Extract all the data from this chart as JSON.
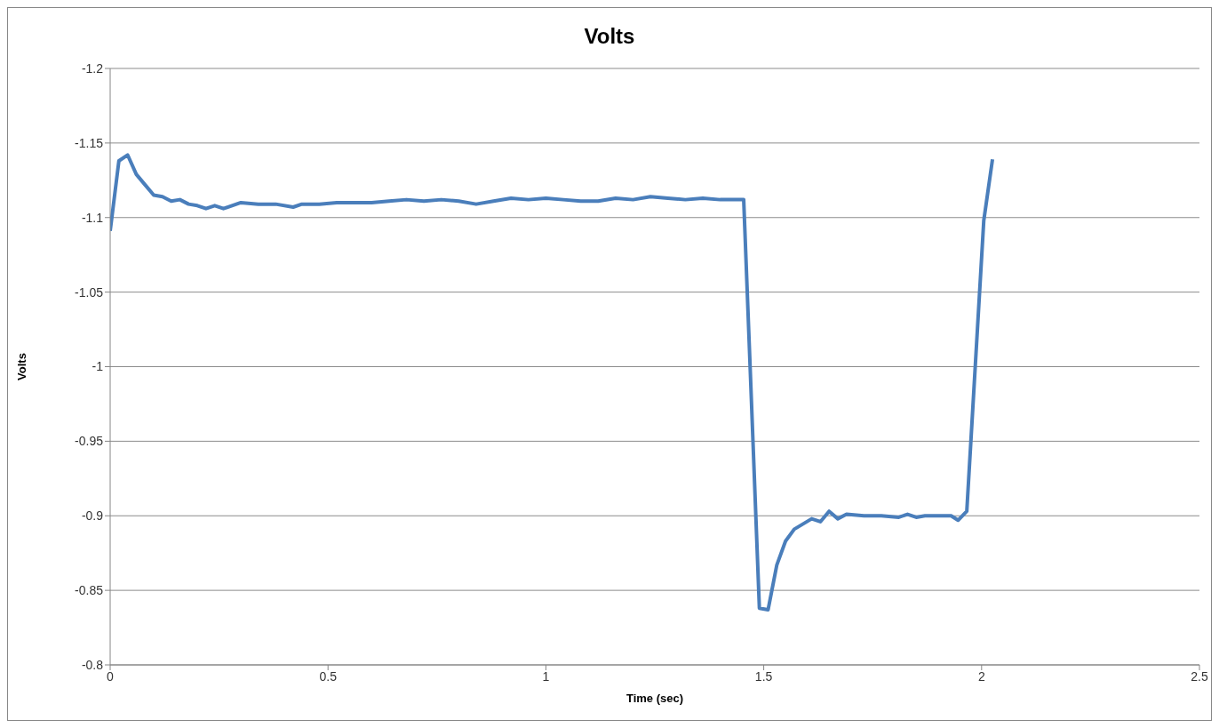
{
  "chart_data": {
    "type": "line",
    "title": "Volts",
    "xlabel": "Time (sec)",
    "ylabel": "Volts",
    "x": [
      0,
      0.02,
      0.04,
      0.06,
      0.08,
      0.1,
      0.12,
      0.14,
      0.16,
      0.18,
      0.2,
      0.22,
      0.24,
      0.26,
      0.3,
      0.34,
      0.38,
      0.42,
      0.44,
      0.48,
      0.52,
      0.56,
      0.6,
      0.64,
      0.68,
      0.72,
      0.76,
      0.8,
      0.84,
      0.88,
      0.92,
      0.96,
      1,
      1.04,
      1.08,
      1.12,
      1.16,
      1.2,
      1.24,
      1.28,
      1.32,
      1.36,
      1.4,
      1.44,
      1.454,
      1.49,
      1.51,
      1.53,
      1.55,
      1.57,
      1.61,
      1.63,
      1.65,
      1.67,
      1.69,
      1.73,
      1.77,
      1.81,
      1.83,
      1.85,
      1.87,
      1.9,
      1.93,
      1.946,
      1.966,
      2.005,
      2.025
    ],
    "series": [
      {
        "color": "#4a7ebb",
        "values": [
          -1.091,
          -1.138,
          -1.142,
          -1.129,
          -1.122,
          -1.115,
          -1.114,
          -1.111,
          -1.112,
          -1.109,
          -1.108,
          -1.106,
          -1.108,
          -1.106,
          -1.11,
          -1.109,
          -1.109,
          -1.107,
          -1.109,
          -1.109,
          -1.11,
          -1.11,
          -1.11,
          -1.111,
          -1.112,
          -1.111,
          -1.112,
          -1.111,
          -1.109,
          -1.111,
          -1.113,
          -1.112,
          -1.113,
          -1.112,
          -1.111,
          -1.111,
          -1.113,
          -1.112,
          -1.114,
          -1.113,
          -1.112,
          -1.113,
          -1.112,
          -1.112,
          -1.112,
          -0.838,
          -0.837,
          -0.867,
          -0.883,
          -0.891,
          -0.898,
          -0.896,
          -0.903,
          -0.898,
          -0.901,
          -0.9,
          -0.9,
          -0.899,
          -0.901,
          -0.899,
          -0.9,
          -0.9,
          -0.9,
          -0.897,
          -0.903,
          -1.098,
          -1.139
        ]
      }
    ],
    "xlim": [
      0,
      2.5
    ],
    "xticks": [
      0,
      0.5,
      1,
      1.5,
      2,
      2.5
    ],
    "ylim": [
      -0.8,
      -1.2
    ],
    "yticks": [
      -1.2,
      -1.15,
      -1.1,
      -1.05,
      -1,
      -0.95,
      -0.9,
      -0.85,
      -0.8
    ],
    "grid": "y",
    "legend": false,
    "marker": "none",
    "line_style": "solid"
  }
}
